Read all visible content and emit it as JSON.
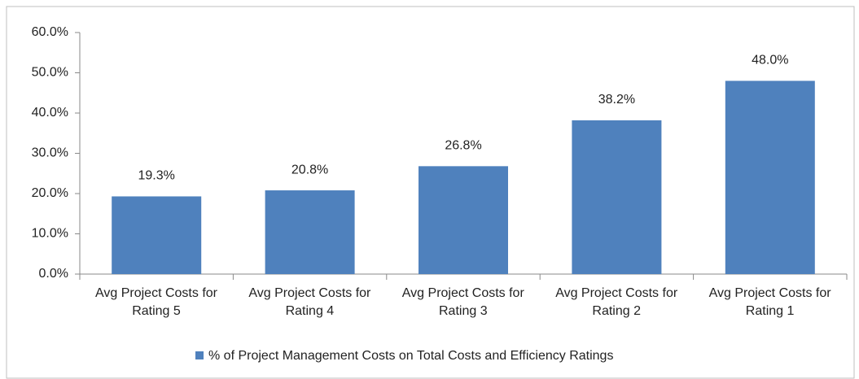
{
  "chart_data": {
    "type": "bar",
    "categories": [
      "Avg Project Costs for Rating 5",
      "Avg Project Costs for Rating 4",
      "Avg Project Costs for Rating 3",
      "Avg Project Costs for Rating 2",
      "Avg Project Costs for Rating 1"
    ],
    "series": [
      {
        "name": "% of Project Management Costs on Total Costs and Efficiency Ratings",
        "color": "#4f81bd",
        "values": [
          19.3,
          20.8,
          26.8,
          38.2,
          48.0
        ],
        "value_labels": [
          "19.3%",
          "20.8%",
          "26.8%",
          "38.2%",
          "48.0%"
        ]
      }
    ],
    "ylim": [
      0,
      60
    ],
    "yticks": [
      {
        "value": 0,
        "label": "0.0%"
      },
      {
        "value": 10,
        "label": "10.0%"
      },
      {
        "value": 20,
        "label": "20.0%"
      },
      {
        "value": 30,
        "label": "30.0%"
      },
      {
        "value": 40,
        "label": "40.0%"
      },
      {
        "value": 50,
        "label": "50.0%"
      },
      {
        "value": 60,
        "label": "60.0%"
      }
    ],
    "grid": false,
    "legend": "bottom"
  }
}
